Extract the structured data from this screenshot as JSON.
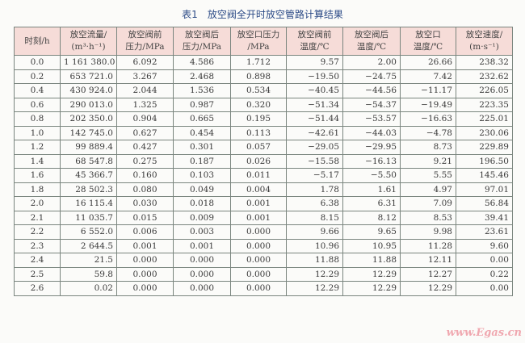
{
  "title": {
    "number": "表1",
    "text": "放空阀全开时放空管路计算结果"
  },
  "columns": [
    {
      "line1": "时刻/h",
      "line2": ""
    },
    {
      "line1": "放空流量/",
      "line2": "(m³·h⁻¹)"
    },
    {
      "line1": "放空阀前",
      "line2": "压力/MPa"
    },
    {
      "line1": "放空阀后",
      "line2": "压力/MPa"
    },
    {
      "line1": "放空口压力",
      "line2": "/MPa"
    },
    {
      "line1": "放空阀前",
      "line2": "温度/℃"
    },
    {
      "line1": "放空阀后",
      "line2": "温度/℃"
    },
    {
      "line1": "放空口",
      "line2": "温度/℃"
    },
    {
      "line1": "放空速度/",
      "line2": "(m·s⁻¹)"
    }
  ],
  "rows": [
    [
      "0.0",
      "1 161 380.0",
      "6.092",
      "4.586",
      "1.712",
      "9.57",
      "2.00",
      "26.66",
      "238.32"
    ],
    [
      "0.2",
      "653 721.0",
      "3.267",
      "2.468",
      "0.898",
      "−19.50",
      "−24.75",
      "7.42",
      "232.62"
    ],
    [
      "0.4",
      "430 924.0",
      "2.044",
      "1.536",
      "0.534",
      "−40.45",
      "−44.56",
      "−11.17",
      "226.05"
    ],
    [
      "0.6",
      "290 013.0",
      "1.325",
      "0.987",
      "0.320",
      "−51.34",
      "−54.37",
      "−19.49",
      "223.35"
    ],
    [
      "0.8",
      "202 350.0",
      "0.904",
      "0.665",
      "0.195",
      "−51.44",
      "−53.57",
      "−16.63",
      "225.01"
    ],
    [
      "1.0",
      "142 745.0",
      "0.627",
      "0.454",
      "0.113",
      "−42.61",
      "−44.03",
      "−4.78",
      "230.06"
    ],
    [
      "1.2",
      "99 889.4",
      "0.427",
      "0.301",
      "0.057",
      "−29.05",
      "−29.95",
      "8.73",
      "229.89"
    ],
    [
      "1.4",
      "68 547.8",
      "0.275",
      "0.187",
      "0.026",
      "−15.58",
      "−16.13",
      "9.21",
      "196.50"
    ],
    [
      "1.6",
      "45 366.7",
      "0.160",
      "0.103",
      "0.011",
      "−5.17",
      "−5.50",
      "5.55",
      "145.46"
    ],
    [
      "1.8",
      "28 502.3",
      "0.080",
      "0.049",
      "0.004",
      "1.78",
      "1.61",
      "4.97",
      "97.01"
    ],
    [
      "2.0",
      "16 115.4",
      "0.030",
      "0.018",
      "0.001",
      "6.38",
      "6.31",
      "7.09",
      "56.84"
    ],
    [
      "2.1",
      "11 035.7",
      "0.015",
      "0.009",
      "0.001",
      "8.15",
      "8.12",
      "8.53",
      "39.41"
    ],
    [
      "2.2",
      "6 552.0",
      "0.006",
      "0.003",
      "0.000",
      "9.66",
      "9.65",
      "9.98",
      "23.61"
    ],
    [
      "2.3",
      "2 644.5",
      "0.001",
      "0.001",
      "0.000",
      "10.96",
      "10.95",
      "11.28",
      "9.60"
    ],
    [
      "2.4",
      "21.5",
      "0.000",
      "0.000",
      "0.000",
      "11.88",
      "11.88",
      "12.11",
      "0.00"
    ],
    [
      "2.5",
      "59.8",
      "0.000",
      "0.000",
      "0.000",
      "12.29",
      "12.29",
      "12.27",
      "0.22"
    ],
    [
      "2.6",
      "0.02",
      "0.000",
      "0.000",
      "0.000",
      "12.29",
      "12.29",
      "12.29",
      "0.00"
    ]
  ],
  "watermark": "www.Egas.cn",
  "colors": {
    "header_bg": "#f6dcd8",
    "title": "#2b4a86",
    "watermark": "#f0a8b0"
  }
}
